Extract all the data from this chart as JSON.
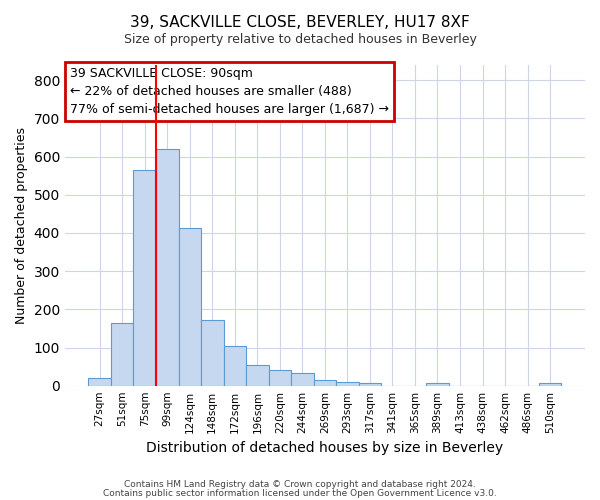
{
  "title_line1": "39, SACKVILLE CLOSE, BEVERLEY, HU17 8XF",
  "title_line2": "Size of property relative to detached houses in Beverley",
  "xlabel": "Distribution of detached houses by size in Beverley",
  "ylabel": "Number of detached properties",
  "bar_labels": [
    "27sqm",
    "51sqm",
    "75sqm",
    "99sqm",
    "124sqm",
    "148sqm",
    "172sqm",
    "196sqm",
    "220sqm",
    "244sqm",
    "269sqm",
    "293sqm",
    "317sqm",
    "341sqm",
    "365sqm",
    "389sqm",
    "413sqm",
    "438sqm",
    "462sqm",
    "486sqm",
    "510sqm"
  ],
  "bar_values": [
    20,
    165,
    565,
    620,
    413,
    172,
    103,
    53,
    42,
    33,
    14,
    10,
    8,
    0,
    0,
    6,
    0,
    0,
    0,
    0,
    8
  ],
  "bar_color": "#c5d8f0",
  "bar_edge_color": "#5b9bd5",
  "red_line_x": 3.0,
  "annotation_text_line1": "39 SACKVILLE CLOSE: 90sqm",
  "annotation_text_line2": "← 22% of detached houses are smaller (488)",
  "annotation_text_line3": "77% of semi-detached houses are larger (1,687) →",
  "annotation_box_color": "#cc0000",
  "ylim": [
    0,
    840
  ],
  "yticks": [
    0,
    100,
    200,
    300,
    400,
    500,
    600,
    700,
    800
  ],
  "footnote_line1": "Contains HM Land Registry data © Crown copyright and database right 2024.",
  "footnote_line2": "Contains public sector information licensed under the Open Government Licence v3.0.",
  "background_color": "#ffffff",
  "grid_color": "#cdd5e8"
}
